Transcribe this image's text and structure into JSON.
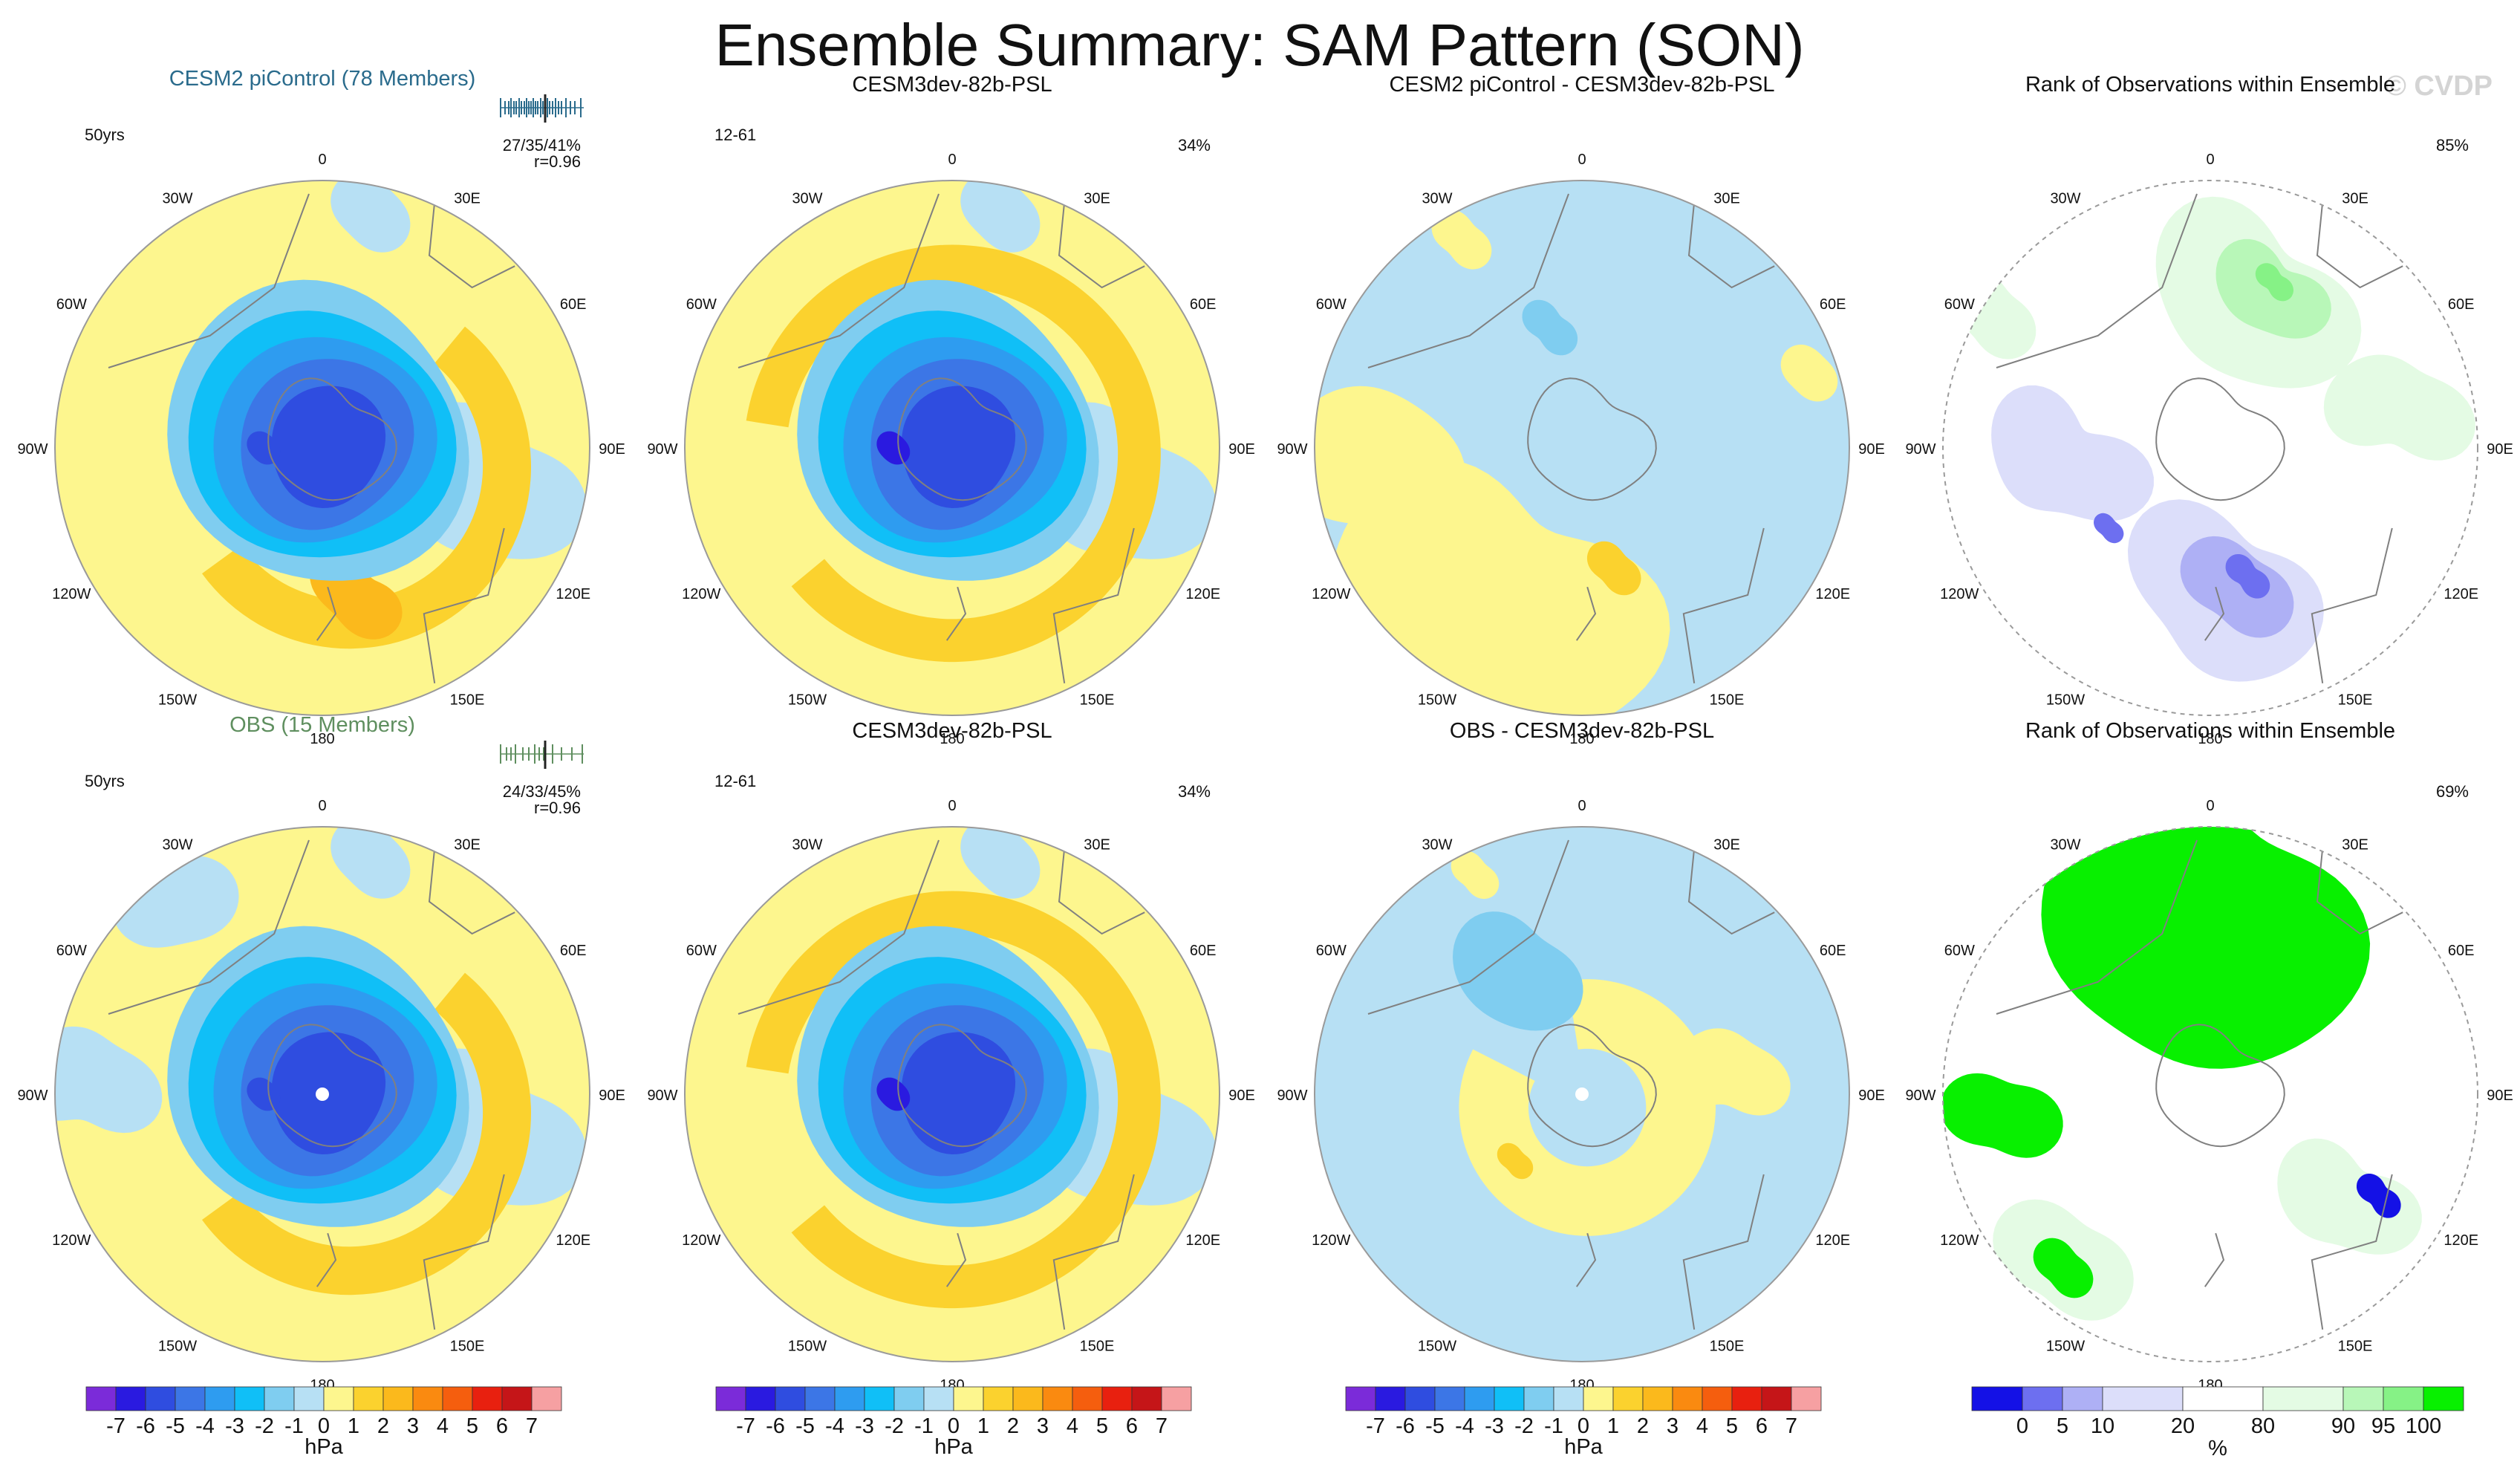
{
  "page": {
    "title": "Ensemble Summary: SAM Pattern (SON)",
    "watermark": "© CVDP"
  },
  "colors": {
    "land": "#808080",
    "circle": "#9a9a9a",
    "row1_title": "#2a6b8c",
    "row2_title": "#5f8f5f",
    "diverging": [
      "#7b2bd9",
      "#2a1ae0",
      "#2f4de0",
      "#3c76e6",
      "#2e9cf0",
      "#10bff7",
      "#7fcdf0",
      "#b7e0f4",
      "#fdf68e",
      "#fbd22e",
      "#fbb91c",
      "#fa8a10",
      "#f55e0e",
      "#e8200f",
      "#c51518",
      "#f6a0a2"
    ],
    "rank": [
      "#1411e6",
      "#6d6ff0",
      "#aeb0f5",
      "#dcdefa",
      "#ffffff",
      "#e4fbe4",
      "#b8f7b8",
      "#86f286",
      "#08f000"
    ],
    "rank_panel_bg": "#ffffff"
  },
  "panels": [
    {
      "id": "p11",
      "title": "CESM2 piControl (78 Members)",
      "title_style": "row1",
      "left_label": "50yrs",
      "right_label": "27/35/41%",
      "corr_label": "r=0.96",
      "spread": "row1",
      "kind": "model",
      "pattern": "model_a"
    },
    {
      "id": "p12",
      "title": "CESM3dev-82b-PSL",
      "title_style": "plain",
      "left_label": "12-61",
      "right_label": "34%",
      "kind": "model",
      "pattern": "model_b"
    },
    {
      "id": "p13",
      "title": "CESM2 piControl - CESM3dev-82b-PSL",
      "title_style": "plain",
      "kind": "diff",
      "pattern": "diff_a"
    },
    {
      "id": "p14",
      "title": "Rank of Observations within Ensemble",
      "title_style": "plain",
      "right_label": "85%",
      "kind": "rank",
      "pattern": "rank_a"
    },
    {
      "id": "p21",
      "title": "OBS (15 Members)",
      "title_style": "row2",
      "left_label": "50yrs",
      "right_label": "24/33/45%",
      "corr_label": "r=0.96",
      "spread": "row2",
      "kind": "model",
      "pattern": "model_c"
    },
    {
      "id": "p22",
      "title": "CESM3dev-82b-PSL",
      "title_style": "plain",
      "left_label": "12-61",
      "right_label": "34%",
      "kind": "model",
      "pattern": "model_b"
    },
    {
      "id": "p23",
      "title": "OBS - CESM3dev-82b-PSL",
      "title_style": "plain",
      "kind": "diff",
      "pattern": "diff_b"
    },
    {
      "id": "p24",
      "title": "Rank of Observations within Ensemble",
      "title_style": "plain",
      "right_label": "69%",
      "kind": "rank",
      "pattern": "rank_b"
    }
  ],
  "longitude_labels": [
    "0",
    "30E",
    "60E",
    "90E",
    "120E",
    "150E",
    "180",
    "150W",
    "120W",
    "90W",
    "60W",
    "30W"
  ],
  "colorbars": {
    "hpa": {
      "ticks": [
        "-7",
        "-6",
        "-5",
        "-4",
        "-3",
        "-2",
        "-1",
        "0",
        "1",
        "2",
        "3",
        "4",
        "5",
        "6",
        "7"
      ],
      "unit": "hPa"
    },
    "rank": {
      "ticks": [
        "0",
        "5",
        "10",
        "20",
        "80",
        "90",
        "95",
        "100"
      ],
      "unit": "%"
    }
  },
  "chart_data": {
    "type": "heatmap",
    "title": "Ensemble Summary: SAM Pattern (SON)",
    "projection": "south polar stereographic",
    "variable": "SAM pattern (sea level pressure), SON",
    "panels": [
      {
        "title": "CESM2 piControl (78 Members)",
        "left": "50yrs",
        "right": "27/35/41%",
        "r": "r=0.96",
        "min_hpa": -5,
        "max_hpa": 3
      },
      {
        "title": "CESM3dev-82b-PSL",
        "left": "12-61",
        "right": "34%",
        "min_hpa": -6,
        "max_hpa": 2
      },
      {
        "title": "CESM2 piControl - CESM3dev-82b-PSL",
        "min_hpa": -1,
        "max_hpa": 2
      },
      {
        "title": "Rank of Observations within Ensemble",
        "right": "85%",
        "min_pct": 0,
        "max_pct": 100
      },
      {
        "title": "OBS (15 Members)",
        "left": "50yrs",
        "right": "24/33/45%",
        "r": "r=0.96",
        "min_hpa": -5,
        "max_hpa": 2
      },
      {
        "title": "CESM3dev-82b-PSL",
        "left": "12-61",
        "right": "34%",
        "min_hpa": -6,
        "max_hpa": 2
      },
      {
        "title": "OBS - CESM3dev-82b-PSL",
        "min_hpa": -2,
        "max_hpa": 1
      },
      {
        "title": "Rank of Observations within Ensemble",
        "right": "69%",
        "min_pct": 0,
        "max_pct": 100
      }
    ],
    "colorbar_hpa": {
      "levels": [
        -7,
        -6,
        -5,
        -4,
        -3,
        -2,
        -1,
        0,
        1,
        2,
        3,
        4,
        5,
        6,
        7
      ],
      "unit": "hPa"
    },
    "colorbar_rank": {
      "levels": [
        0,
        5,
        10,
        20,
        80,
        90,
        95,
        100
      ],
      "unit": "%"
    }
  }
}
